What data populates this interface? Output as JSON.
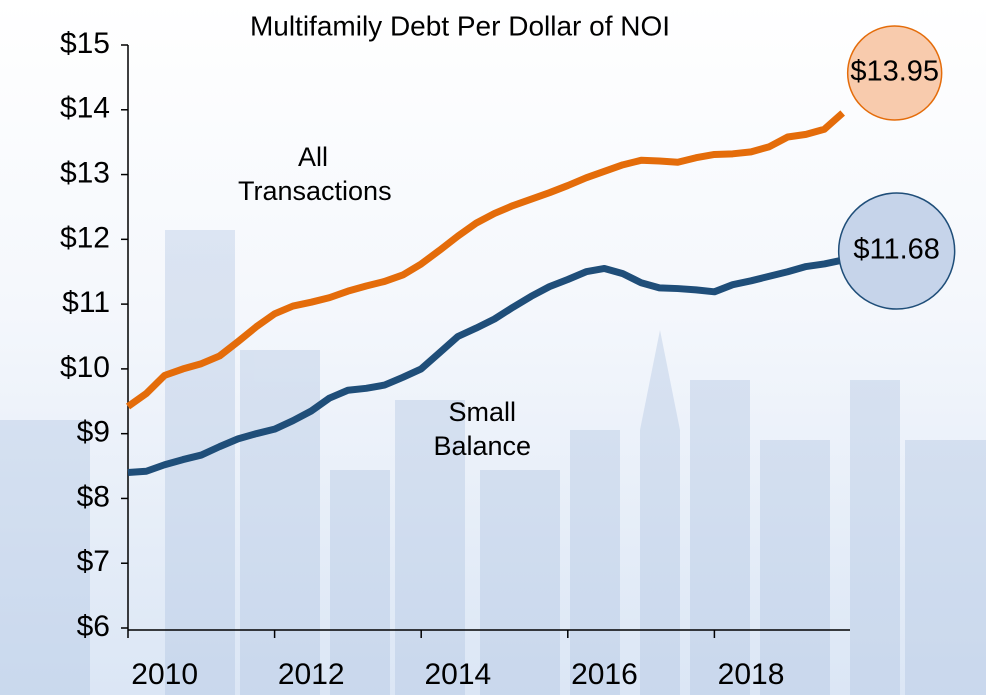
{
  "chart_data": {
    "type": "line",
    "title": "Multifamily Debt Per Dollar of NOI",
    "x": [
      2010,
      2010.25,
      2010.5,
      2010.75,
      2011,
      2011.25,
      2011.5,
      2011.75,
      2012,
      2012.25,
      2012.5,
      2012.75,
      2013,
      2013.25,
      2013.5,
      2013.75,
      2014,
      2014.25,
      2014.5,
      2014.75,
      2015,
      2015.25,
      2015.5,
      2015.75,
      2016,
      2016.25,
      2016.5,
      2016.75,
      2017,
      2017.25,
      2017.5,
      2017.75,
      2018,
      2018.25,
      2018.5,
      2018.75,
      2019,
      2019.25,
      2019.5,
      2019.75
    ],
    "series": [
      {
        "name": "All Transactions",
        "color": "#e46c0a",
        "end_label": "$13.95",
        "values": [
          9.42,
          9.62,
          9.9,
          10.0,
          10.08,
          10.2,
          10.42,
          10.65,
          10.85,
          10.97,
          11.03,
          11.1,
          11.2,
          11.28,
          11.35,
          11.45,
          11.62,
          11.83,
          12.05,
          12.25,
          12.4,
          12.52,
          12.62,
          12.72,
          12.83,
          12.95,
          13.05,
          13.15,
          13.22,
          13.21,
          13.19,
          13.26,
          13.31,
          13.32,
          13.35,
          13.43,
          13.58,
          13.62,
          13.7,
          13.95
        ]
      },
      {
        "name": "Small Balance",
        "color": "#1f4e79",
        "end_label": "$11.68",
        "values": [
          8.4,
          8.42,
          8.52,
          8.6,
          8.67,
          8.8,
          8.92,
          9.0,
          9.07,
          9.2,
          9.35,
          9.55,
          9.67,
          9.7,
          9.75,
          9.87,
          10.0,
          10.25,
          10.5,
          10.63,
          10.77,
          10.95,
          11.12,
          11.27,
          11.38,
          11.5,
          11.55,
          11.47,
          11.33,
          11.25,
          11.24,
          11.22,
          11.19,
          11.3,
          11.36,
          11.43,
          11.5,
          11.58,
          11.62,
          11.68
        ]
      }
    ],
    "xlim": [
      2010,
      2019.85
    ],
    "xticks": [
      2010,
      2012,
      2014,
      2016,
      2018
    ],
    "ylim": [
      6,
      15
    ],
    "yticks": [
      {
        "value": 6,
        "label": "$6"
      },
      {
        "value": 7,
        "label": "$7"
      },
      {
        "value": 8,
        "label": "$8"
      },
      {
        "value": 9,
        "label": "$9"
      },
      {
        "value": 10,
        "label": "$10"
      },
      {
        "value": 11,
        "label": "$11"
      },
      {
        "value": 12,
        "label": "$12"
      },
      {
        "value": 13,
        "label": "$13"
      },
      {
        "value": 14,
        "label": "$14"
      },
      {
        "value": 15,
        "label": "$15"
      }
    ],
    "grid": false
  }
}
